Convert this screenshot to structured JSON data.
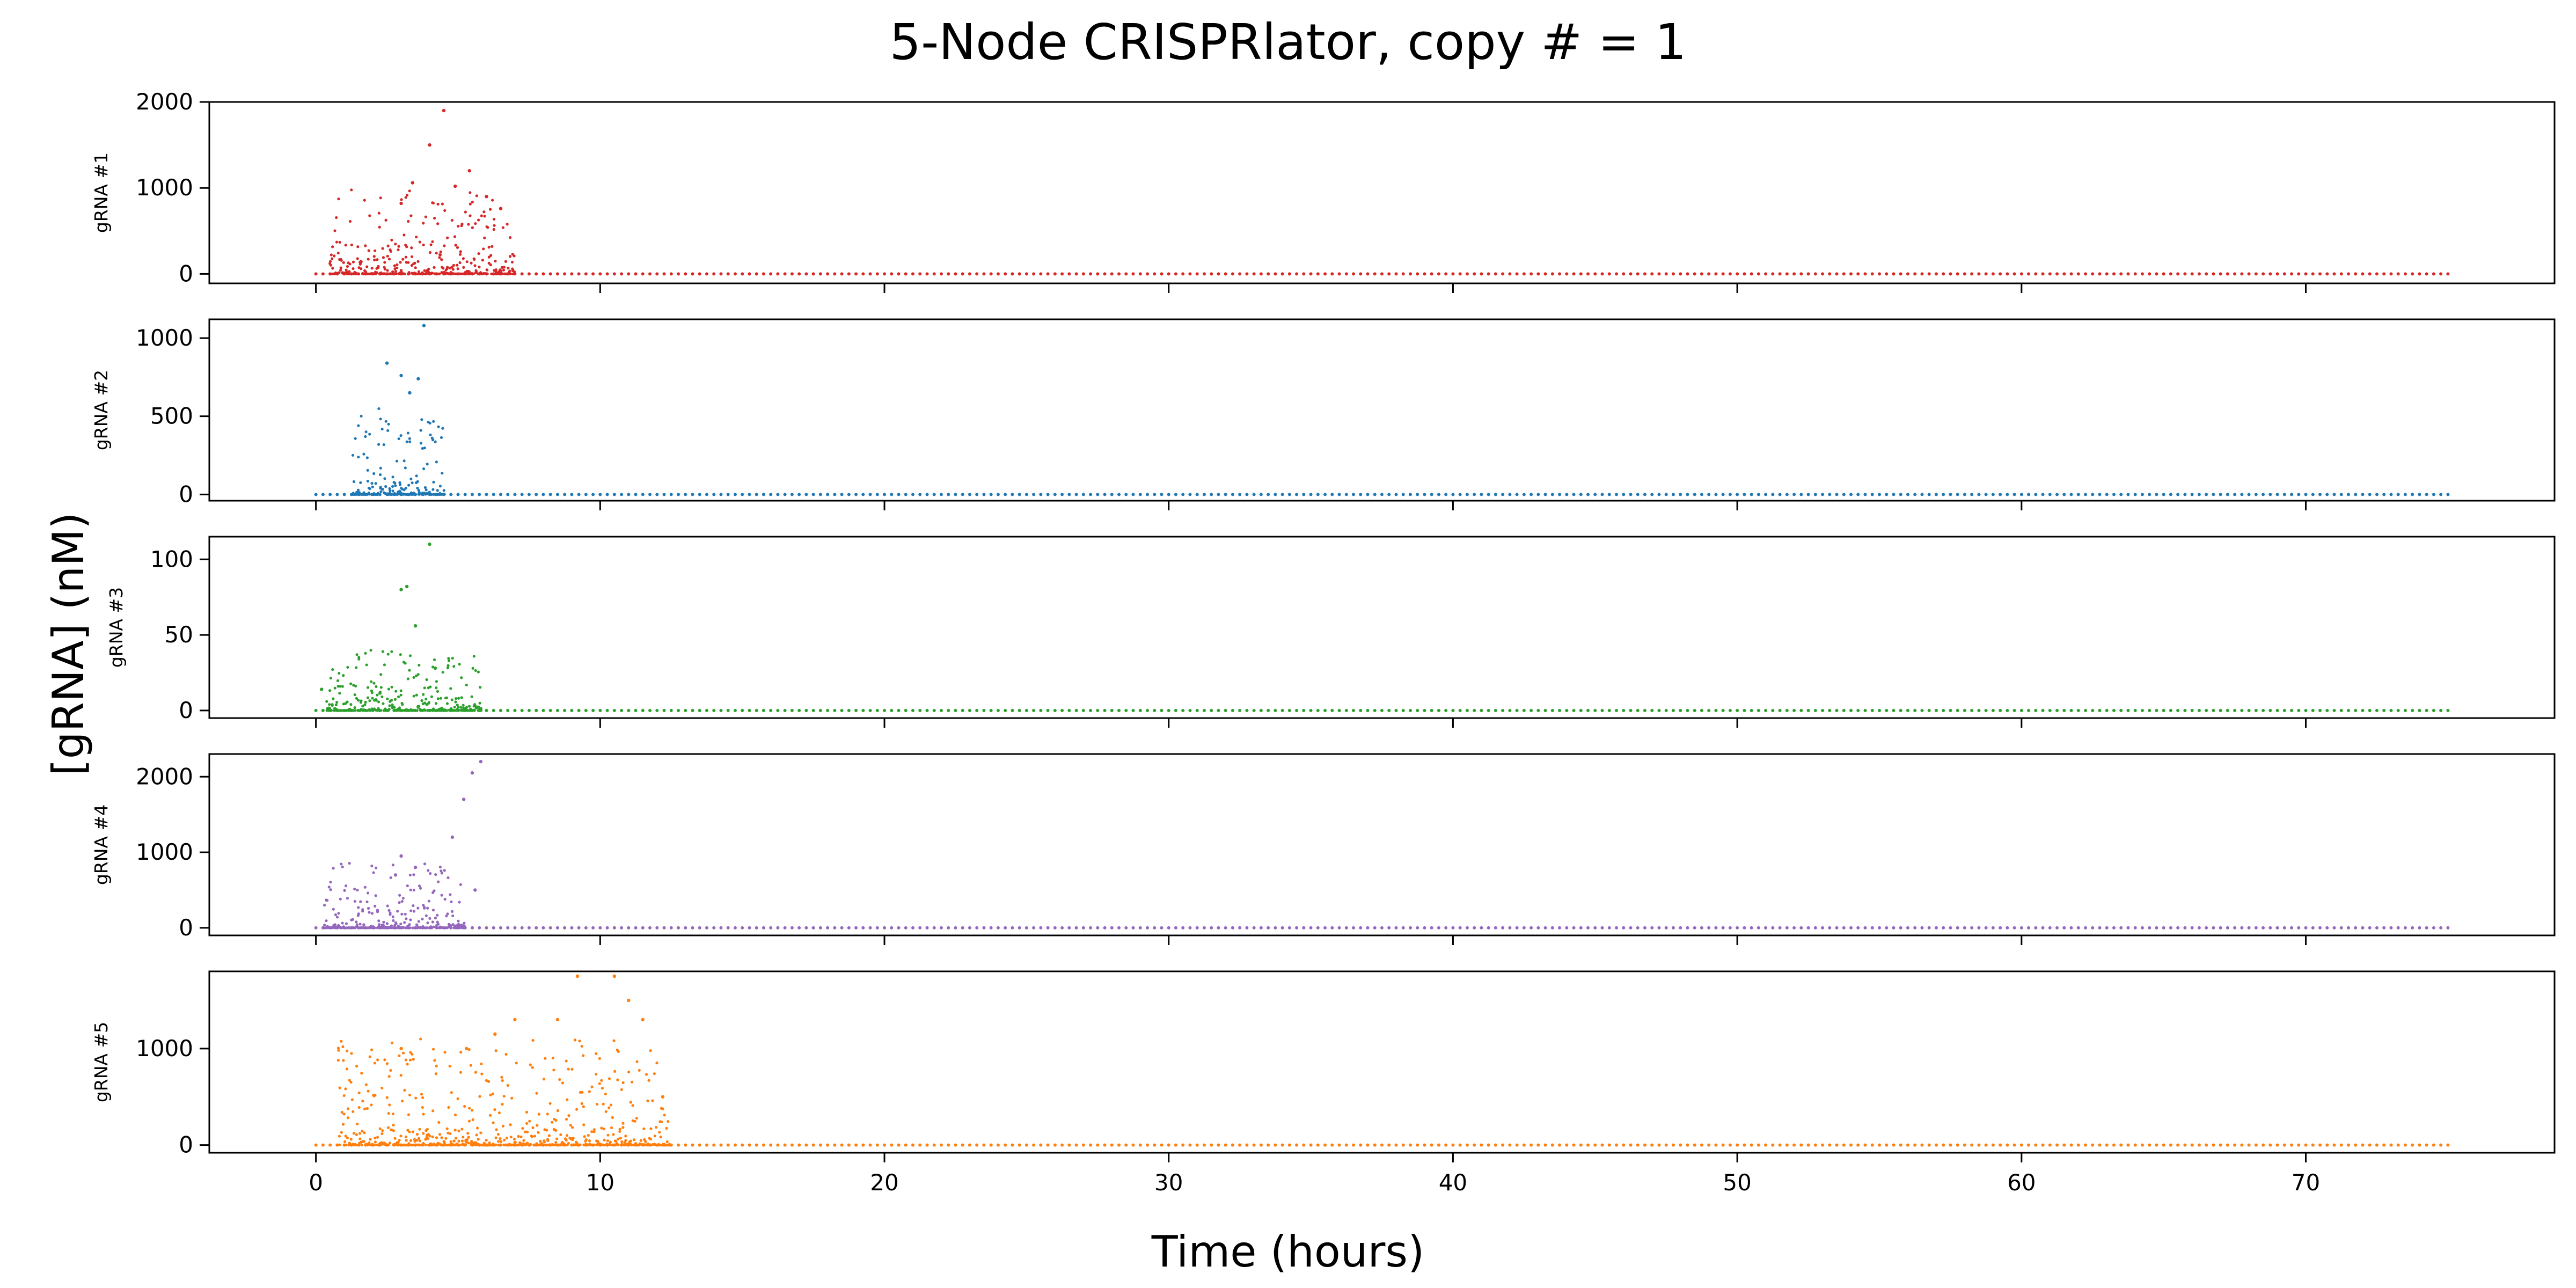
{
  "chart_data": {
    "type": "scatter",
    "title": "5-Node CRISPRlator, copy # = 1",
    "xlabel": "Time (hours)",
    "ylabel": "[gRNA] (nM)",
    "xlim": [
      -3.75,
      78.75
    ],
    "xticks": [
      0,
      10,
      20,
      30,
      40,
      50,
      60,
      70
    ],
    "grid": false,
    "legend": "none",
    "x_range": [
      0,
      75
    ],
    "panels": [
      {
        "name": "gRNA #1",
        "color": "#d62728",
        "ylim": [
          -110,
          2000
        ],
        "yticks": [
          0,
          1000,
          2000
        ],
        "peaks": [
          [
            3.0,
            820
          ],
          [
            3.4,
            1060
          ],
          [
            4.0,
            1500
          ],
          [
            4.5,
            1900
          ],
          [
            4.9,
            1020
          ],
          [
            5.4,
            1200
          ],
          [
            6.0,
            900
          ],
          [
            6.5,
            760
          ]
        ],
        "burst": {
          "t_start": 0.5,
          "t_end": 7.0,
          "ymax": 1000
        },
        "baseline": 0
      },
      {
        "name": "gRNA #2",
        "color": "#1f77b4",
        "ylim": [
          -40,
          1120
        ],
        "yticks": [
          0,
          500,
          1000
        ],
        "peaks": [
          [
            2.5,
            840
          ],
          [
            3.0,
            760
          ],
          [
            3.3,
            650
          ],
          [
            3.6,
            740
          ],
          [
            3.8,
            1080
          ]
        ],
        "burst": {
          "t_start": 1.3,
          "t_end": 4.5,
          "ymax": 560
        },
        "baseline": 0
      },
      {
        "name": "gRNA #3",
        "color": "#2ca02c",
        "ylim": [
          -5,
          115
        ],
        "yticks": [
          0,
          50,
          100
        ],
        "peaks": [
          [
            0.2,
            14
          ],
          [
            3.0,
            80
          ],
          [
            3.2,
            82
          ],
          [
            3.5,
            56
          ],
          [
            4.0,
            110
          ],
          [
            4.2,
            28
          ]
        ],
        "burst": {
          "t_start": 0.4,
          "t_end": 5.8,
          "ymax": 40
        },
        "baseline": 0
      },
      {
        "name": "gRNA #4",
        "color": "#9467bd",
        "ylim": [
          -100,
          2300
        ],
        "yticks": [
          0,
          1000,
          2000
        ],
        "peaks": [
          [
            2.8,
            700
          ],
          [
            3.0,
            950
          ],
          [
            3.5,
            800
          ],
          [
            4.8,
            1200
          ],
          [
            5.2,
            1700
          ],
          [
            5.5,
            2050
          ],
          [
            5.8,
            2200
          ],
          [
            5.6,
            500
          ]
        ],
        "burst": {
          "t_start": 0.3,
          "t_end": 5.2,
          "ymax": 900
        },
        "baseline": 0
      },
      {
        "name": "gRNA #5",
        "color": "#ff7f0e",
        "ylim": [
          -80,
          1800
        ],
        "yticks": [
          0,
          1000
        ],
        "peaks": [
          [
            3.0,
            1000
          ],
          [
            5.3,
            1000
          ],
          [
            6.3,
            1150
          ],
          [
            7.0,
            1300
          ],
          [
            8.5,
            1300
          ],
          [
            9.2,
            1750
          ],
          [
            10.5,
            1750
          ],
          [
            11.0,
            1500
          ],
          [
            11.5,
            1300
          ],
          [
            12.2,
            500
          ]
        ],
        "burst": {
          "t_start": 0.8,
          "t_end": 12.5,
          "ymax": 1100
        },
        "baseline": 0
      }
    ]
  }
}
